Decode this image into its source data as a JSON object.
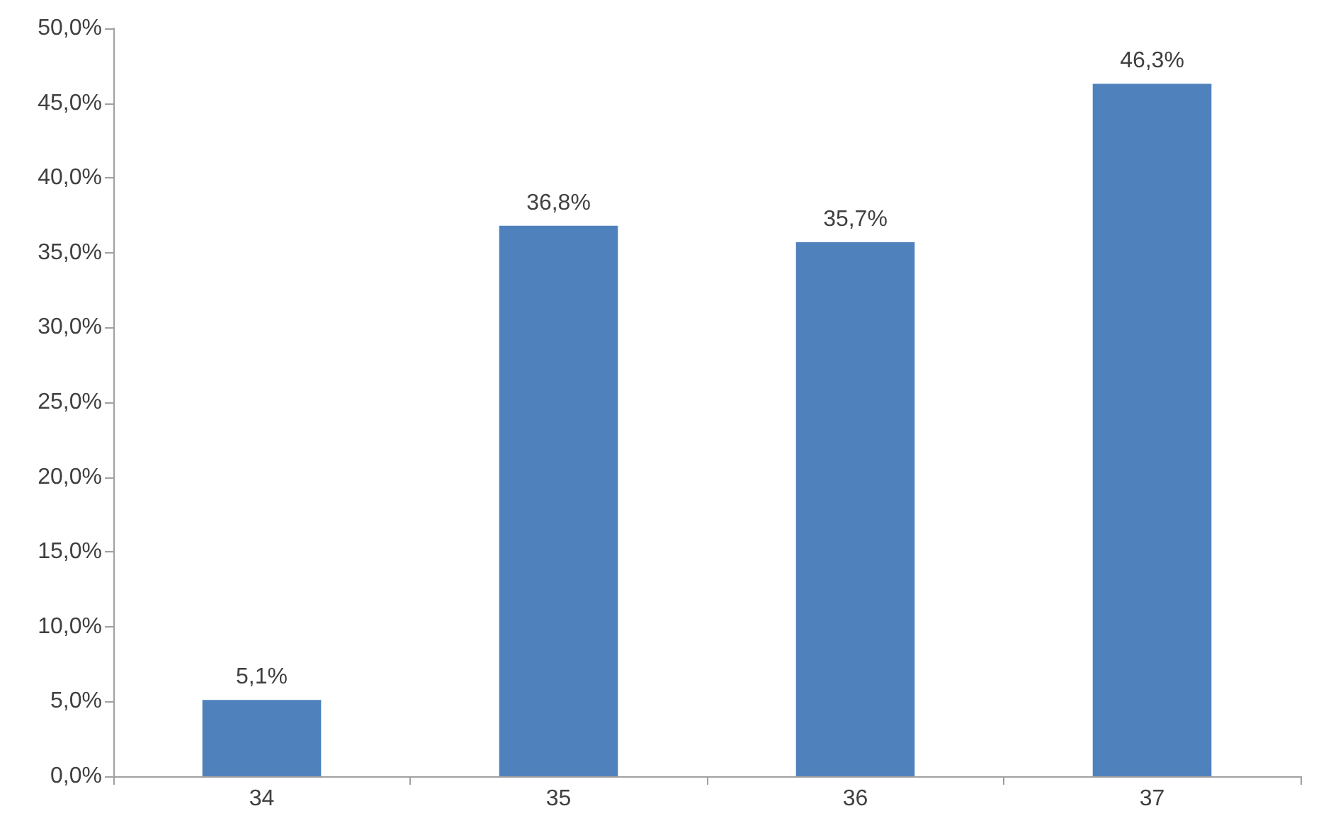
{
  "chart_data": {
    "type": "bar",
    "categories": [
      "34",
      "35",
      "36",
      "37"
    ],
    "values": [
      5.1,
      36.8,
      35.7,
      46.3
    ],
    "value_labels": [
      "5,1%",
      "36,8%",
      "35,7%",
      "46,3%"
    ],
    "color": "#4f81bd",
    "ylim": [
      0,
      50
    ],
    "yticks": [
      {
        "value": 0,
        "label": "0,0%"
      },
      {
        "value": 5,
        "label": "5,0%"
      },
      {
        "value": 10,
        "label": "10,0%"
      },
      {
        "value": 15,
        "label": "15,0%"
      },
      {
        "value": 20,
        "label": "20,0%"
      },
      {
        "value": 25,
        "label": "25,0%"
      },
      {
        "value": 30,
        "label": "30,0%"
      },
      {
        "value": 35,
        "label": "35,0%"
      },
      {
        "value": 40,
        "label": "40,0%"
      },
      {
        "value": 45,
        "label": "45,0%"
      },
      {
        "value": 50,
        "label": "50,0%"
      }
    ],
    "grid": false
  }
}
